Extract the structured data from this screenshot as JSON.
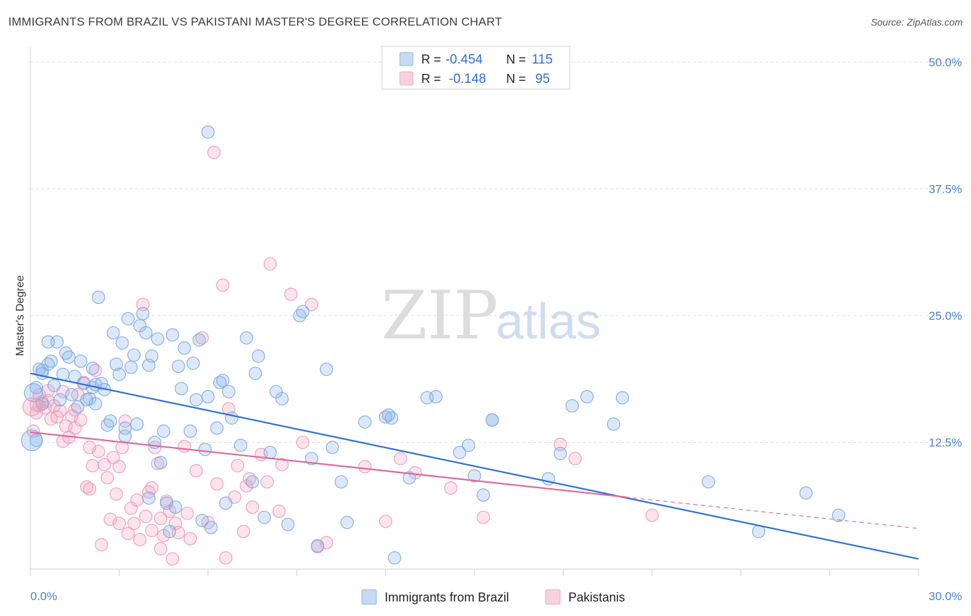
{
  "header": {
    "title": "IMMIGRANTS FROM BRAZIL VS PAKISTANI MASTER'S DEGREE CORRELATION CHART",
    "source": "Source: ZipAtlas.com"
  },
  "watermark": {
    "part1": "ZIP",
    "part2": "atlas"
  },
  "legend": {
    "rows": [
      {
        "r_label": "R =",
        "r_value": "-0.454",
        "n_label": "N =",
        "n_value": "115",
        "color": "#8ab4e8"
      },
      {
        "r_label": "R =",
        "r_value": "-0.148",
        "n_label": "N =",
        "n_value": "95",
        "color": "#f2a7c0"
      }
    ]
  },
  "bottom_legend": [
    {
      "label": "Immigrants from Brazil",
      "color": "#8ab4e8"
    },
    {
      "label": "Pakistanis",
      "color": "#f2a7c0"
    }
  ],
  "chart_data": {
    "type": "scatter",
    "title": "IMMIGRANTS FROM BRAZIL VS PAKISTANI MASTER'S DEGREE CORRELATION CHART",
    "xlabel": "",
    "ylabel": "Master's Degree",
    "xlim": [
      0,
      30
    ],
    "ylim": [
      0,
      50
    ],
    "x_tick_labels": [
      "0.0%",
      "30.0%"
    ],
    "y_ticks": [
      12.5,
      25.0,
      37.5,
      50.0
    ],
    "y_tick_labels": [
      "12.5%",
      "25.0%",
      "37.5%",
      "50.0%"
    ],
    "grid": true,
    "legend_position": "top-center",
    "series": [
      {
        "name": "Immigrants from Brazil",
        "color": "#8ab4e8",
        "line_color": "#2e6fd8",
        "trend": {
          "x0": 0,
          "y0": 19.3,
          "x1": 30,
          "y1": 1.0
        },
        "points": [
          [
            0.2,
            17.9
          ],
          [
            0.2,
            12.7
          ],
          [
            0.3,
            19.7
          ],
          [
            0.4,
            19.6
          ],
          [
            0.6,
            22.4
          ],
          [
            0.6,
            20.2
          ],
          [
            0.7,
            20.5
          ],
          [
            0.8,
            18.1
          ],
          [
            0.9,
            22.4
          ],
          [
            1.1,
            19.2
          ],
          [
            1.2,
            21.3
          ],
          [
            1.3,
            20.9
          ],
          [
            1.4,
            17.2
          ],
          [
            1.5,
            19.0
          ],
          [
            1.6,
            16.0
          ],
          [
            1.7,
            20.5
          ],
          [
            1.8,
            18.3
          ],
          [
            1.9,
            16.7
          ],
          [
            2.0,
            16.8
          ],
          [
            2.1,
            17.9
          ],
          [
            2.1,
            19.8
          ],
          [
            2.2,
            16.3
          ],
          [
            2.3,
            26.8
          ],
          [
            2.4,
            18.3
          ],
          [
            2.5,
            17.7
          ],
          [
            2.6,
            14.2
          ],
          [
            2.7,
            14.6
          ],
          [
            2.8,
            23.3
          ],
          [
            2.9,
            20.2
          ],
          [
            3.0,
            19.2
          ],
          [
            3.1,
            22.3
          ],
          [
            3.2,
            13.1
          ],
          [
            3.3,
            24.7
          ],
          [
            3.4,
            19.9
          ],
          [
            3.5,
            21.1
          ],
          [
            3.6,
            14.3
          ],
          [
            3.7,
            24.0
          ],
          [
            3.8,
            25.2
          ],
          [
            3.9,
            23.3
          ],
          [
            4.0,
            20.1
          ],
          [
            4.1,
            21.0
          ],
          [
            4.2,
            12.5
          ],
          [
            4.3,
            22.7
          ],
          [
            4.4,
            10.5
          ],
          [
            4.5,
            13.6
          ],
          [
            4.6,
            6.5
          ],
          [
            4.7,
            3.7
          ],
          [
            4.8,
            23.1
          ],
          [
            4.9,
            6.1
          ],
          [
            5.0,
            20.0
          ],
          [
            5.1,
            17.8
          ],
          [
            5.2,
            21.8
          ],
          [
            5.4,
            13.6
          ],
          [
            5.5,
            20.3
          ],
          [
            5.6,
            16.7
          ],
          [
            5.7,
            22.6
          ],
          [
            5.8,
            4.8
          ],
          [
            5.9,
            11.8
          ],
          [
            6.0,
            17.0
          ],
          [
            6.1,
            4.1
          ],
          [
            6.3,
            13.9
          ],
          [
            6.4,
            18.4
          ],
          [
            6.5,
            18.6
          ],
          [
            6.6,
            6.5
          ],
          [
            6.7,
            17.5
          ],
          [
            6.8,
            14.9
          ],
          [
            7.1,
            12.2
          ],
          [
            7.3,
            22.8
          ],
          [
            7.5,
            8.6
          ],
          [
            7.6,
            19.3
          ],
          [
            7.7,
            21.0
          ],
          [
            7.9,
            5.1
          ],
          [
            8.1,
            11.5
          ],
          [
            8.3,
            17.5
          ],
          [
            8.5,
            16.8
          ],
          [
            8.7,
            4.4
          ],
          [
            9.1,
            25.0
          ],
          [
            9.2,
            25.4
          ],
          [
            9.5,
            10.9
          ],
          [
            9.7,
            2.3
          ],
          [
            10.0,
            19.7
          ],
          [
            10.2,
            12.0
          ],
          [
            10.5,
            8.6
          ],
          [
            10.7,
            4.6
          ],
          [
            11.3,
            14.5
          ],
          [
            12.0,
            15.0
          ],
          [
            12.1,
            15.2
          ],
          [
            12.3,
            1.1
          ],
          [
            12.8,
            9.0
          ],
          [
            13.4,
            16.9
          ],
          [
            13.7,
            17.0
          ],
          [
            14.5,
            11.5
          ],
          [
            14.8,
            12.2
          ],
          [
            15.0,
            9.2
          ],
          [
            15.3,
            7.3
          ],
          [
            15.6,
            14.7
          ],
          [
            17.5,
            8.9
          ],
          [
            17.9,
            11.4
          ],
          [
            18.3,
            16.1
          ],
          [
            18.8,
            17.0
          ],
          [
            19.7,
            14.3
          ],
          [
            20.0,
            16.9
          ],
          [
            15.6,
            14.7
          ],
          [
            22.9,
            8.6
          ],
          [
            27.3,
            5.3
          ],
          [
            26.2,
            7.5
          ],
          [
            24.6,
            3.7
          ],
          [
            6.0,
            43.1
          ],
          [
            0.4,
            19.3
          ],
          [
            3.2,
            13.9
          ],
          [
            2.2,
            18.2
          ],
          [
            1.0,
            16.7
          ],
          [
            4.0,
            7.0
          ],
          [
            12.2,
            14.9
          ],
          [
            0.4,
            16.3
          ]
        ]
      },
      {
        "name": "Pakistanis",
        "color": "#f2a7c0",
        "line_color": "#e0699a",
        "trend": {
          "x0": 0,
          "y0": 13.5,
          "x1": 20.1,
          "y1": 7.1
        },
        "trend_ext": {
          "x0": 20.1,
          "y0": 7.1,
          "x1": 30,
          "y1": 4.0
        },
        "points": [
          [
            0.1,
            13.6
          ],
          [
            0.2,
            15.4
          ],
          [
            0.2,
            16.2
          ],
          [
            0.3,
            17.2
          ],
          [
            0.4,
            16.5
          ],
          [
            0.5,
            15.9
          ],
          [
            0.6,
            17.6
          ],
          [
            0.7,
            14.8
          ],
          [
            0.8,
            16.1
          ],
          [
            0.9,
            15.0
          ],
          [
            1.0,
            15.6
          ],
          [
            1.1,
            12.6
          ],
          [
            1.2,
            14.1
          ],
          [
            1.3,
            13.0
          ],
          [
            1.4,
            15.1
          ],
          [
            1.5,
            13.9
          ],
          [
            1.6,
            17.2
          ],
          [
            1.7,
            14.7
          ],
          [
            1.8,
            18.4
          ],
          [
            1.9,
            8.1
          ],
          [
            2.0,
            12.0
          ],
          [
            2.1,
            10.2
          ],
          [
            2.2,
            19.6
          ],
          [
            2.3,
            11.6
          ],
          [
            2.4,
            2.4
          ],
          [
            2.5,
            10.3
          ],
          [
            2.6,
            9.0
          ],
          [
            2.7,
            4.9
          ],
          [
            2.8,
            11.0
          ],
          [
            2.9,
            7.4
          ],
          [
            3.0,
            10.1
          ],
          [
            3.1,
            12.0
          ],
          [
            3.2,
            14.6
          ],
          [
            3.3,
            3.5
          ],
          [
            3.4,
            6.0
          ],
          [
            3.5,
            4.5
          ],
          [
            3.6,
            6.8
          ],
          [
            3.7,
            2.9
          ],
          [
            3.8,
            26.1
          ],
          [
            3.9,
            5.2
          ],
          [
            4.0,
            7.6
          ],
          [
            4.1,
            3.8
          ],
          [
            4.2,
            12.0
          ],
          [
            4.3,
            10.4
          ],
          [
            4.4,
            5.0
          ],
          [
            4.5,
            3.3
          ],
          [
            4.6,
            6.7
          ],
          [
            4.7,
            5.7
          ],
          [
            4.8,
            1.0
          ],
          [
            4.9,
            4.5
          ],
          [
            5.0,
            3.6
          ],
          [
            5.2,
            12.1
          ],
          [
            5.4,
            3.0
          ],
          [
            5.6,
            9.7
          ],
          [
            5.8,
            22.8
          ],
          [
            6.0,
            4.6
          ],
          [
            6.2,
            41.1
          ],
          [
            6.3,
            8.4
          ],
          [
            6.5,
            28.0
          ],
          [
            6.6,
            1.1
          ],
          [
            6.7,
            15.8
          ],
          [
            6.9,
            7.1
          ],
          [
            7.2,
            3.7
          ],
          [
            7.3,
            8.2
          ],
          [
            7.4,
            8.9
          ],
          [
            7.8,
            11.3
          ],
          [
            8.1,
            30.1
          ],
          [
            8.4,
            5.7
          ],
          [
            8.5,
            10.3
          ],
          [
            8.8,
            27.1
          ],
          [
            9.2,
            12.5
          ],
          [
            9.5,
            26.1
          ],
          [
            10.0,
            2.6
          ],
          [
            11.3,
            10.1
          ],
          [
            12.0,
            4.7
          ],
          [
            12.5,
            10.9
          ],
          [
            13.0,
            9.5
          ],
          [
            15.3,
            5.1
          ],
          [
            17.9,
            12.3
          ],
          [
            18.4,
            10.9
          ],
          [
            0.3,
            16.1
          ],
          [
            0.6,
            16.6
          ],
          [
            1.1,
            17.5
          ],
          [
            1.5,
            15.7
          ],
          [
            2.0,
            7.9
          ],
          [
            3.0,
            4.5
          ],
          [
            4.1,
            8.0
          ],
          [
            4.4,
            2.0
          ],
          [
            5.3,
            5.5
          ],
          [
            7.0,
            10.2
          ],
          [
            7.5,
            6.1
          ],
          [
            8.0,
            8.6
          ],
          [
            9.7,
            2.2
          ],
          [
            14.2,
            8.0
          ],
          [
            21.0,
            5.3
          ]
        ]
      }
    ]
  }
}
